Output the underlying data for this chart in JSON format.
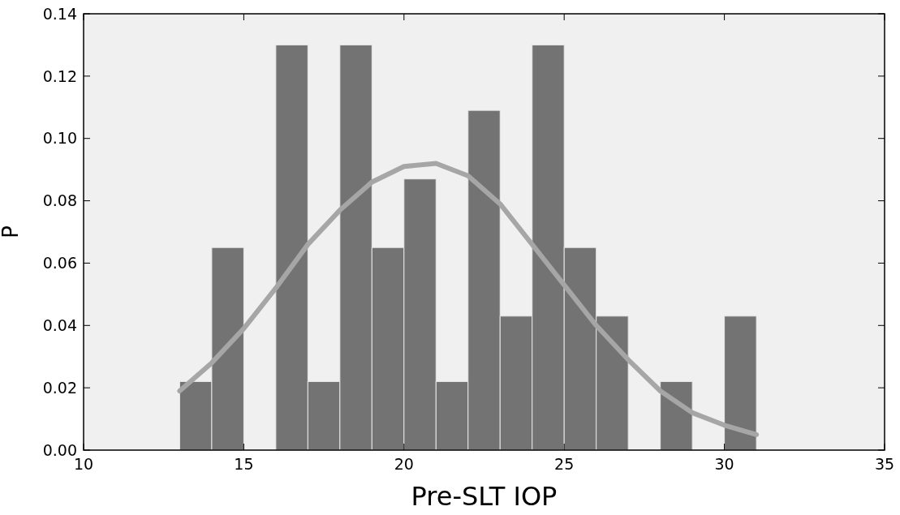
{
  "chart_data": {
    "type": "histogram",
    "xlabel": "Pre-SLT IOP",
    "ylabel": "P",
    "bins": [
      13,
      14,
      15,
      16,
      17,
      18,
      19,
      20,
      21,
      22,
      23,
      24,
      25,
      26,
      27,
      28,
      29,
      30,
      31
    ],
    "series": [
      {
        "color": "#737373",
        "values": [
          0.022,
          0.065,
          0,
          0.13,
          0.022,
          0.13,
          0.065,
          0.087,
          0.022,
          0.109,
          0.043,
          0.13,
          0.065,
          0.043,
          0,
          0.022,
          0,
          0.043
        ]
      },
      {
        "type": "line",
        "color": "#a6a6a6",
        "x": [
          13,
          14,
          15,
          16,
          17,
          18,
          19,
          20,
          21,
          22,
          23,
          24,
          25,
          26,
          27,
          28,
          29,
          30,
          31
        ],
        "values": [
          0.019,
          0.028,
          0.039,
          0.052,
          0.066,
          0.077,
          0.086,
          0.091,
          0.092,
          0.088,
          0.079,
          0.066,
          0.053,
          0.04,
          0.029,
          0.019,
          0.012,
          0.008,
          0.005
        ]
      }
    ],
    "xlim": [
      10,
      35
    ],
    "xticks": [
      10,
      15,
      20,
      25,
      30,
      35
    ],
    "ylim": [
      0,
      0.14
    ],
    "yticks": [
      {
        "value": 0,
        "label": "0.00"
      },
      {
        "value": 0.02,
        "label": "0.02"
      },
      {
        "value": 0.04,
        "label": "0.04"
      },
      {
        "value": 0.06,
        "label": "0.06"
      },
      {
        "value": 0.08,
        "label": "0.08"
      },
      {
        "value": 0.1,
        "label": "0.10"
      },
      {
        "value": 0.12,
        "label": "0.12"
      },
      {
        "value": 0.14,
        "label": "0.14"
      }
    ],
    "grid": false,
    "marker": "none",
    "line_style": "solid"
  }
}
